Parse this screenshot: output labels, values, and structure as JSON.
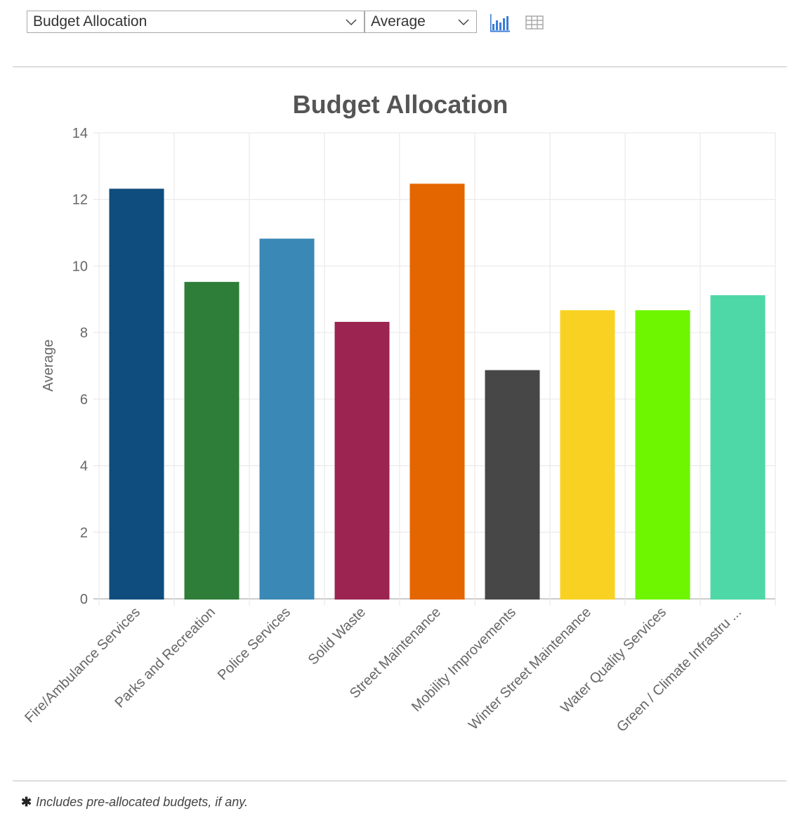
{
  "controls": {
    "metric_select": {
      "value": "Budget Allocation"
    },
    "aggregation_select": {
      "value": "Average"
    },
    "chart_view_icon": "bar-chart-icon",
    "table_view_icon": "table-icon",
    "active_color": "#3b7dd8"
  },
  "footnote": {
    "symbol": "✱",
    "text": "Includes pre-allocated budgets, if any."
  },
  "chart_data": {
    "type": "bar",
    "title": "Budget Allocation",
    "xlabel": "",
    "ylabel": "Average",
    "ylim": [
      0,
      14
    ],
    "yticks": [
      0,
      2,
      4,
      6,
      8,
      10,
      12,
      14
    ],
    "grid": true,
    "legend": "none",
    "categories": [
      "Fire/Ambulance Services",
      "Parks and Recreation",
      "Police Services",
      "Solid Waste",
      "Street Maintenance",
      "Mobility Improvements",
      "Winter Street Maintenance",
      "Water Quality Services",
      "Green / Climate Infrastru ..."
    ],
    "values": [
      12.3,
      9.5,
      10.8,
      8.3,
      12.45,
      6.85,
      8.65,
      8.65,
      9.1
    ],
    "colors": [
      "#0e4d7e",
      "#2e7d38",
      "#3a88b5",
      "#9b2450",
      "#e36600",
      "#474747",
      "#f9d122",
      "#6ef600",
      "#4ed8a7"
    ]
  }
}
